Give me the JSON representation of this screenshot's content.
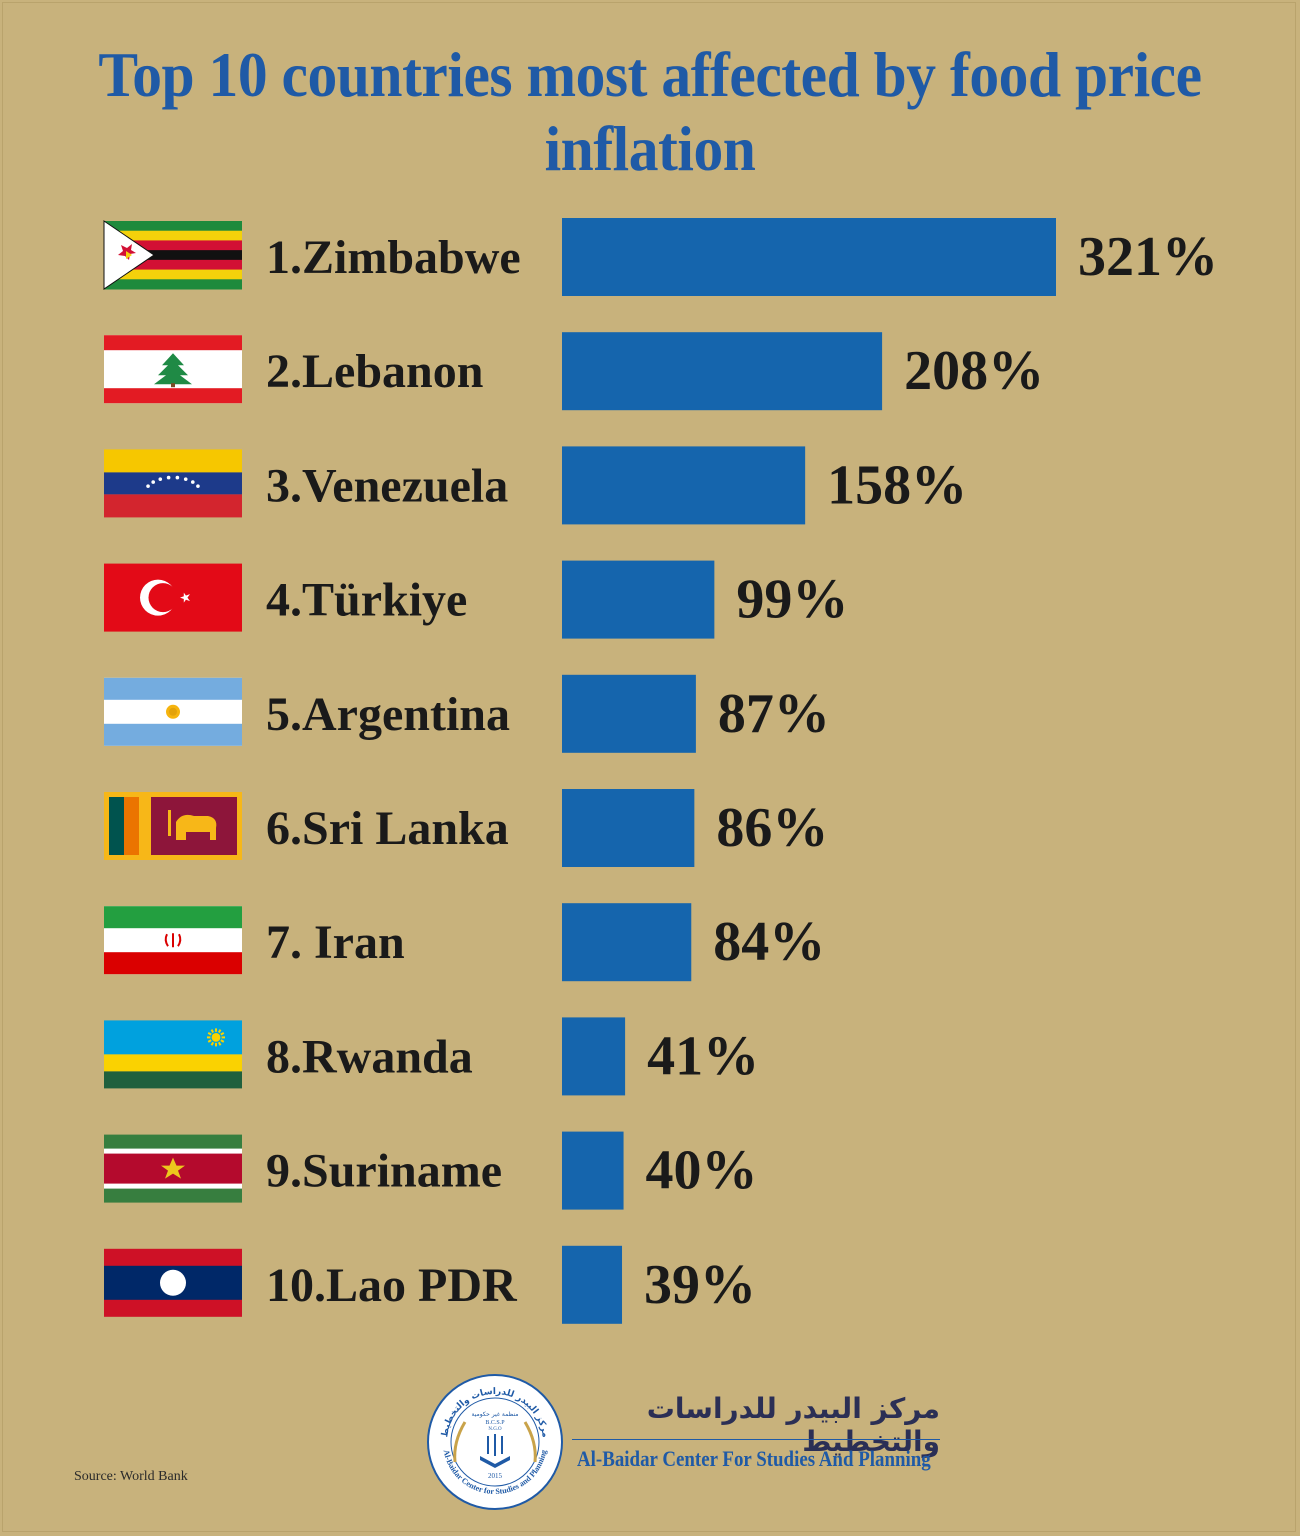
{
  "title": "Top 10 countries most affected by food price inflation",
  "source": "Source: World Bank",
  "colors": {
    "background": "#c8b27c",
    "bar": "#1565ad",
    "title": "#1f5aa6"
  },
  "logo": {
    "name_ar": "مركز البيدر للدراسات والتخطيط",
    "name_en": "Al-Baidar Center For Studies And Planning",
    "seal_ar": "مركز البيدر للدراسات والتخطيط",
    "seal_ngo_ar": "منظمة غير حكومية",
    "seal_abbr": "B.C.S.P",
    "seal_ngo": "N.G.O",
    "seal_year": "2015",
    "seal_en": "Al-Baidar Center for Studies and Planning",
    "seal_icon": "wheat-book-icon"
  },
  "chart_data": {
    "type": "bar",
    "orientation": "horizontal",
    "title": "Top 10 countries most affected by food price inflation",
    "categories": [
      "1.Zimbabwe",
      "2.Lebanon",
      "3.Venezuela",
      "4.Türkiye",
      "5.Argentina",
      "6.Sri Lanka",
      "7. Iran",
      "8.Rwanda",
      "9.Suriname",
      "10.Lao PDR"
    ],
    "values": [
      321,
      208,
      158,
      99,
      87,
      86,
      84,
      41,
      40,
      39
    ],
    "value_labels": [
      "321%",
      "208%",
      "158%",
      "99%",
      "87%",
      "86%",
      "84%",
      "41%",
      "40%",
      "39%"
    ],
    "flag_icons": [
      "zimbabwe-flag-icon",
      "lebanon-flag-icon",
      "venezuela-flag-icon",
      "turkiye-flag-icon",
      "argentina-flag-icon",
      "sri-lanka-flag-icon",
      "iran-flag-icon",
      "rwanda-flag-icon",
      "suriname-flag-icon",
      "laos-flag-icon"
    ],
    "xlabel": "",
    "ylabel": "",
    "grid": false,
    "legend": "none"
  }
}
